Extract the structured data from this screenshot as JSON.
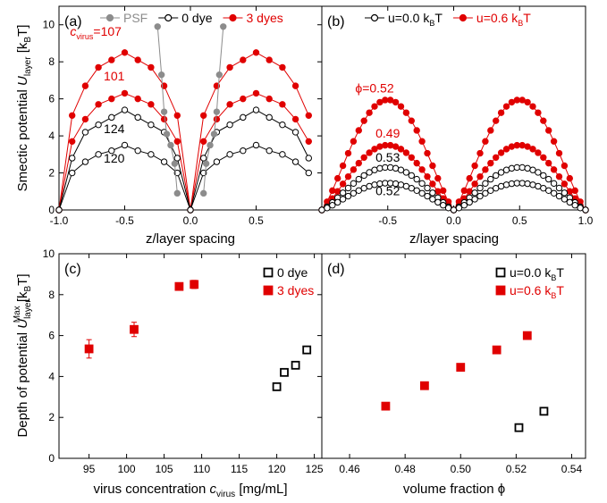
{
  "colors": {
    "black": "#000000",
    "red": "#e00000",
    "gray": "#8c8c8c"
  },
  "chart_data": [
    {
      "panel": "a",
      "type": "line",
      "panel_label": "(a)",
      "xlabel": "z/layer spacing",
      "ylabel_parts": [
        "Smectic potential ",
        "U",
        "layer",
        " [k",
        "B",
        "T]"
      ],
      "xlim": [
        -1.0,
        1.0
      ],
      "ylim": [
        0,
        11
      ],
      "xticks": [
        -1.0,
        -0.5,
        0.0,
        0.5
      ],
      "xtick_labels": [
        "-1.0",
        "-0.5",
        "0.0",
        "0.5"
      ],
      "yticks": [
        0,
        2,
        4,
        6,
        8,
        10
      ],
      "ytick_labels": [
        "0",
        "2",
        "4",
        "6",
        "8",
        "10"
      ],
      "legend": [
        {
          "label": "PSF",
          "color": "#8c8c8c",
          "marker": "filled"
        },
        {
          "label": "0 dye",
          "color": "#000000",
          "marker": "open"
        },
        {
          "label": "3 dyes",
          "color": "#e00000",
          "marker": "filled"
        }
      ],
      "x": [
        -1.0,
        -0.9,
        -0.8,
        -0.7,
        -0.6,
        -0.5,
        -0.4,
        -0.3,
        -0.2,
        -0.1,
        0.0,
        0.1,
        0.2,
        0.3,
        0.4,
        0.5,
        0.6,
        0.7,
        0.8,
        0.9
      ],
      "series": [
        {
          "color": "#e00000",
          "marker": "filled",
          "values": [
            0,
            5.1,
            6.7,
            7.7,
            8.1,
            8.5,
            8.1,
            7.7,
            6.7,
            5.1,
            0,
            5.1,
            6.7,
            7.7,
            8.1,
            8.5,
            8.1,
            7.7,
            6.7,
            5.1
          ]
        },
        {
          "color": "#e00000",
          "marker": "filled",
          "values": [
            0,
            3.7,
            4.9,
            5.7,
            6.0,
            6.3,
            6.0,
            5.7,
            4.9,
            3.7,
            0,
            3.7,
            4.9,
            5.7,
            6.0,
            6.3,
            6.0,
            5.7,
            4.9,
            3.7
          ]
        },
        {
          "color": "#000000",
          "marker": "open",
          "values": [
            0,
            2.8,
            4.2,
            4.6,
            5.0,
            5.4,
            5.0,
            4.6,
            4.2,
            2.8,
            0,
            2.8,
            4.2,
            4.6,
            5.0,
            5.4,
            5.0,
            4.6,
            4.2,
            2.8
          ]
        },
        {
          "color": "#000000",
          "marker": "open",
          "values": [
            0,
            2.0,
            2.6,
            3.0,
            3.2,
            3.5,
            3.2,
            3.0,
            2.6,
            2.0,
            0,
            2.0,
            2.6,
            3.0,
            3.2,
            3.5,
            3.2,
            3.0,
            2.6,
            2.0
          ]
        },
        {
          "color": "#8c8c8c",
          "marker": "filled",
          "x": [
            -0.25,
            -0.22,
            -0.2,
            -0.18,
            -0.15,
            -0.12,
            -0.1
          ],
          "values": [
            9.9,
            7.3,
            5.3,
            4.1,
            3.5,
            2.5,
            0.9
          ]
        },
        {
          "color": "#8c8c8c",
          "marker": "filled",
          "x": [
            0.1,
            0.12,
            0.15,
            0.18,
            0.2,
            0.22,
            0.25
          ],
          "values": [
            0.9,
            2.5,
            3.5,
            4.1,
            5.3,
            7.3,
            9.9
          ]
        }
      ],
      "annotations": [
        {
          "parts": [
            "c",
            "virus",
            "=107"
          ],
          "italic_first": true,
          "x": -0.72,
          "y": 9.4,
          "color": "#e00000"
        },
        {
          "parts": [
            "101"
          ],
          "x": -0.58,
          "y": 7.0,
          "color": "#e00000"
        },
        {
          "parts": [
            "124"
          ],
          "x": -0.58,
          "y": 4.15,
          "color": "#000000"
        },
        {
          "parts": [
            "120"
          ],
          "x": -0.58,
          "y": 2.55,
          "color": "#000000"
        }
      ]
    },
    {
      "panel": "b",
      "type": "line",
      "panel_label": "(b)",
      "xlabel": "z/layer spacing",
      "xlim": [
        -1.0,
        1.0
      ],
      "ylim": [
        0,
        11
      ],
      "xticks": [
        -0.5,
        0.0,
        0.5,
        1.0
      ],
      "xtick_labels": [
        "-0.5",
        "0.0",
        "0.5",
        "1.0"
      ],
      "legend": [
        {
          "label_parts": [
            "u=0.0 k",
            "B",
            "T"
          ],
          "color": "#000000",
          "marker": "open"
        },
        {
          "label_parts": [
            "u=0.6 k",
            "B",
            "T"
          ],
          "color": "#e00000",
          "marker": "filled"
        }
      ],
      "series": [
        {
          "color": "#e00000",
          "marker": "filled",
          "peak": 5.95,
          "base": 0.5
        },
        {
          "color": "#e00000",
          "marker": "filled",
          "peak": 3.5,
          "base": 0.35
        },
        {
          "color": "#000000",
          "marker": "open",
          "peak": 2.3,
          "base": 0.25
        },
        {
          "color": "#000000",
          "marker": "open",
          "peak": 1.45,
          "base": 0.15
        }
      ],
      "annotations": [
        {
          "parts": [
            "ϕ=0.52"
          ],
          "x": -0.6,
          "y": 6.35,
          "color": "#e00000"
        },
        {
          "parts": [
            "0.49"
          ],
          "x": -0.5,
          "y": 3.9,
          "color": "#e00000"
        },
        {
          "parts": [
            "0.53"
          ],
          "x": -0.5,
          "y": 2.6,
          "color": "#000000"
        },
        {
          "parts": [
            "0.52"
          ],
          "x": -0.5,
          "y": 0.8,
          "color": "#000000"
        }
      ]
    },
    {
      "panel": "c",
      "type": "scatter",
      "panel_label": "(c)",
      "xlabel_parts": [
        "virus concentration ",
        "c",
        "virus",
        " [mg/mL]"
      ],
      "ylabel_parts": [
        "Depth of potential ",
        "U",
        "layer",
        "Max",
        " [k",
        "B",
        "T]"
      ],
      "xlim": [
        91,
        126
      ],
      "ylim": [
        0,
        10
      ],
      "xticks": [
        95,
        100,
        105,
        110,
        115,
        120,
        125
      ],
      "xtick_labels": [
        "95",
        "100",
        "105",
        "110",
        "115",
        "120",
        "125"
      ],
      "yticks": [
        0,
        2,
        4,
        6,
        8,
        10
      ],
      "ytick_labels": [
        "0",
        "2",
        "4",
        "6",
        "8",
        "10"
      ],
      "legend": [
        {
          "label": "0 dye",
          "color": "#000000",
          "marker": "open-square"
        },
        {
          "label": "3 dyes",
          "color": "#e00000",
          "marker": "filled-square"
        }
      ],
      "series": [
        {
          "name": "0 dye",
          "color": "#000000",
          "marker": "open-square",
          "x": [
            120,
            121,
            122.5,
            124
          ],
          "values": [
            3.5,
            4.2,
            4.55,
            5.3
          ],
          "err": [
            0,
            0,
            0,
            0
          ]
        },
        {
          "name": "3 dyes",
          "color": "#e00000",
          "marker": "filled-square",
          "x": [
            95,
            101,
            107,
            109
          ],
          "values": [
            5.35,
            6.3,
            8.4,
            8.5
          ],
          "err": [
            0.45,
            0.35,
            0.12,
            0.2
          ]
        }
      ]
    },
    {
      "panel": "d",
      "type": "scatter",
      "panel_label": "(d)",
      "xlabel": "volume fraction ϕ",
      "xlim": [
        0.45,
        0.545
      ],
      "ylim": [
        0,
        10
      ],
      "xticks": [
        0.46,
        0.48,
        0.5,
        0.52,
        0.54
      ],
      "xtick_labels": [
        "0.46",
        "0.48",
        "0.50",
        "0.52",
        "0.54"
      ],
      "legend": [
        {
          "label_parts": [
            "u=0.0 k",
            "B",
            "T"
          ],
          "color": "#000000",
          "marker": "open-square"
        },
        {
          "label_parts": [
            "u=0.6 k",
            "B",
            "T"
          ],
          "color": "#e00000",
          "marker": "filled-square"
        }
      ],
      "series": [
        {
          "color": "#000000",
          "marker": "open-square",
          "x": [
            0.521,
            0.53
          ],
          "values": [
            1.5,
            2.3
          ],
          "err": [
            0,
            0
          ]
        },
        {
          "color": "#e00000",
          "marker": "filled-square",
          "x": [
            0.473,
            0.487,
            0.5,
            0.513,
            0.524
          ],
          "values": [
            2.55,
            3.55,
            4.45,
            5.3,
            6.0
          ],
          "err": [
            0,
            0,
            0,
            0,
            0
          ]
        }
      ]
    }
  ]
}
